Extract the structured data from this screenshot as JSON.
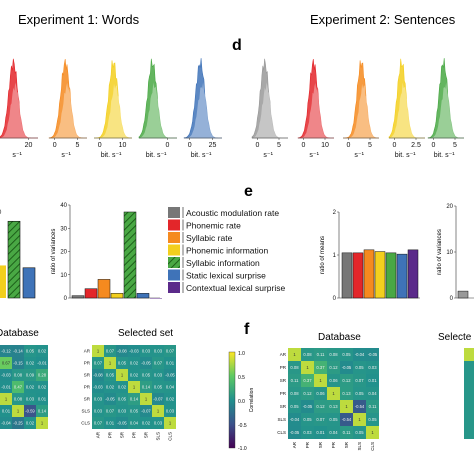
{
  "titles": {
    "exp1": "Experiment 1: Words",
    "exp2": "Experiment 2: Sentences",
    "panel_d": "d",
    "panel_e": "e",
    "panel_f": "f",
    "database_left": "Database",
    "selected_left": "Selected set",
    "database_right": "Database",
    "selected_right": "Selecte"
  },
  "colors": {
    "grey": "#999999",
    "red": "#e3262a",
    "orange": "#f58a1f",
    "yellow": "#f3cf1e",
    "green": "#49a844",
    "blue": "#3f73b8",
    "purple": "#5b2a8a"
  },
  "legend": [
    {
      "label": "Acoustic modulation rate",
      "color": "#777777"
    },
    {
      "label": "Phonemic rate",
      "color": "#e3262a"
    },
    {
      "label": "Syllabic rate",
      "color": "#f58a1f"
    },
    {
      "label": "Phonemic information",
      "color": "#f3cf1e"
    },
    {
      "label": "Syllabic information",
      "color": "#49a844"
    },
    {
      "label": "Static lexical surprise",
      "color": "#3f73b8"
    },
    {
      "label": "Contextual lexical surprise",
      "color": "#5b2a8a"
    }
  ],
  "chart_data": [
    {
      "type": "area",
      "name": "Experiment 1 distributions",
      "panels": [
        {
          "color": "#e3262a",
          "tick_labels": [
            "20"
          ],
          "xlabel": "s⁻¹"
        },
        {
          "color": "#f58a1f",
          "tick_labels": [
            "0",
            "5"
          ],
          "xlabel": "s⁻¹"
        },
        {
          "color": "#f3cf1e",
          "tick_labels": [
            "0",
            "10"
          ],
          "xlabel": "bit. s⁻¹"
        },
        {
          "color": "#49a844",
          "tick_labels": [
            "0"
          ],
          "xlabel": "bit. s⁻¹"
        },
        {
          "color": "#3f73b8",
          "tick_labels": [
            "0",
            "25"
          ],
          "xlabel": "bit. s⁻¹"
        }
      ]
    },
    {
      "type": "area",
      "name": "Experiment 2 distributions",
      "panels": [
        {
          "color": "#999999",
          "tick_labels": [
            "0",
            "5"
          ],
          "xlabel": "s⁻¹"
        },
        {
          "color": "#e3262a",
          "tick_labels": [
            "0",
            "10"
          ],
          "xlabel": "s⁻¹"
        },
        {
          "color": "#f58a1f",
          "tick_labels": [
            "0",
            "5"
          ],
          "xlabel": "s⁻¹"
        },
        {
          "color": "#f3cf1e",
          "tick_labels": [
            "0",
            "2.5"
          ],
          "xlabel": "bit. s⁻¹"
        },
        {
          "color": "#49a844",
          "tick_labels": [
            "0",
            "5"
          ],
          "xlabel": "bit. s⁻¹"
        }
      ]
    },
    {
      "type": "bar",
      "name": "Experiment 1 ratio of variances",
      "ylabel": "ratio of variances",
      "ylim": [
        0,
        40
      ],
      "yticks": [
        "0",
        "10",
        "20",
        "30",
        "40"
      ],
      "categories": [
        "Acoustic modulation rate",
        "Phonemic rate",
        "Syllabic rate",
        "Phonemic information",
        "Syllabic information",
        "Static lexical surprise",
        "Contextual lexical surprise"
      ],
      "values": [
        1,
        4,
        8,
        2,
        37,
        2,
        0
      ],
      "hatched": [
        false,
        false,
        false,
        false,
        true,
        false,
        false
      ]
    },
    {
      "type": "bar",
      "name": "Experiment 2 ratio of means",
      "ylabel": "ratio of means",
      "ylim": [
        0,
        2
      ],
      "yticks": [
        "0",
        "1",
        "2"
      ],
      "categories": [
        "Acoustic modulation rate",
        "Phonemic rate",
        "Syllabic rate",
        "Phonemic information",
        "Syllabic information",
        "Static lexical surprise",
        "Contextual lexical surprise"
      ],
      "values": [
        1.05,
        1.05,
        1.12,
        1.08,
        1.05,
        1.02,
        1.12
      ]
    },
    {
      "type": "bar",
      "name": "Experiment 2 ratio of variances",
      "ylabel": "ratio of variances",
      "ylim": [
        0,
        20
      ],
      "yticks": [
        "0",
        "10",
        "20"
      ],
      "values": [
        1.5
      ]
    },
    {
      "type": "heatmap",
      "name": "Correlation colorbar",
      "colorbar_label": "Correlation",
      "colorbar_ticks": [
        "-1.0",
        "-0.5",
        "0.0",
        "0.5",
        "1.0"
      ],
      "vmin": -1,
      "vmax": 1
    },
    {
      "type": "heatmap",
      "name": "Experiment 1 Database",
      "cells": [
        [
          "-0.12",
          "-0.14",
          "0.05",
          "0.02"
        ],
        [
          "0.67",
          "-0.15",
          "0.02",
          "-0.01"
        ],
        [
          "-0.03",
          "0.08",
          "0.09",
          "0.28"
        ],
        [
          "-0.01",
          "0.47",
          "0.02",
          "0.02"
        ],
        [
          "1",
          "0.08",
          "0.03",
          "0.01"
        ],
        [
          "0.01",
          "1",
          "-0.59",
          "0.14"
        ],
        [
          "-0.04",
          "-0.25",
          "0.02",
          "1"
        ]
      ]
    },
    {
      "type": "heatmap",
      "name": "Experiment 1 Selected set",
      "labels": [
        "AR",
        "PR",
        "SR",
        "PR",
        "SR",
        "SLS",
        "CLS"
      ],
      "cells": [
        [
          "1",
          "0.07",
          "-0.08",
          "-0.03",
          "0.03",
          "0.03",
          "0.07"
        ],
        [
          "0.07",
          "1",
          "0.05",
          "0.02",
          "-0.05",
          "0.07",
          "0.01"
        ],
        [
          "-0.08",
          "0.05",
          "1",
          "0.02",
          "0.05",
          "0.03",
          "-0.05"
        ],
        [
          "-0.03",
          "0.02",
          "0.02",
          "1",
          "0.14",
          "0.05",
          "0.04"
        ],
        [
          "0.03",
          "-0.05",
          "0.05",
          "0.14",
          "1",
          "-0.07",
          "0.02"
        ],
        [
          "0.03",
          "0.07",
          "0.03",
          "0.05",
          "-0.07",
          "1",
          "0.03"
        ],
        [
          "0.07",
          "0.01",
          "-0.05",
          "0.04",
          "0.02",
          "0.03",
          "1"
        ]
      ]
    },
    {
      "type": "heatmap",
      "name": "Experiment 2 Database",
      "labels": [
        "AR",
        "PR",
        "SR",
        "PR",
        "SR",
        "SLS",
        "CLS"
      ],
      "cells": [
        [
          "1",
          "0.08",
          "0.11",
          "0.08",
          "0.05",
          "-0.04",
          "-0.05"
        ],
        [
          "0.08",
          "1",
          "0.37",
          "0.12",
          "-0.05",
          "0.05",
          "0.03"
        ],
        [
          "0.11",
          "0.37",
          "1",
          "0.06",
          "0.12",
          "0.07",
          "0.01"
        ],
        [
          "0.08",
          "0.12",
          "0.06",
          "1",
          "0.13",
          "0.05",
          "0.04"
        ],
        [
          "0.05",
          "-0.05",
          "0.12",
          "0.13",
          "1",
          "-0.54",
          "0.11"
        ],
        [
          "-0.04",
          "0.05",
          "0.07",
          "0.05",
          "-0.54",
          "1",
          "0.05"
        ],
        [
          "-0.05",
          "0.03",
          "0.01",
          "0.04",
          "0.11",
          "0.05",
          "1"
        ]
      ]
    }
  ]
}
